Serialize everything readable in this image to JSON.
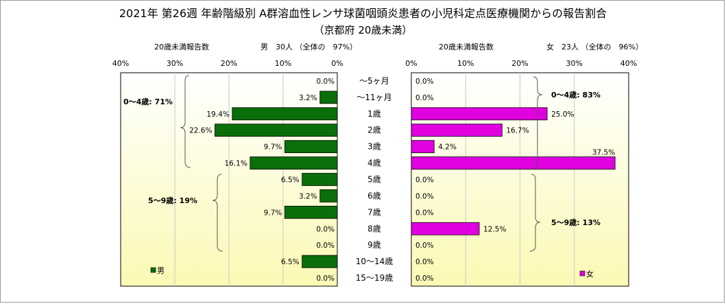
{
  "title": "2021年 第26週 年齢階級別 A群溶血性レンサ球菌咽頭炎患者の小児科定点医療機関からの報告割合",
  "subtitle": "（京都府 20歳未満）",
  "colors": {
    "male_bar": "#0a6e0a",
    "female_bar": "#e000e0",
    "plot_bg_top": "#ffffff",
    "plot_bg_bottom": "#fbf9b4",
    "gridline": "#c8c8c8"
  },
  "chart_data": [
    {
      "type": "bar",
      "orientation": "horizontal",
      "direction": "leftward",
      "header_left": "20歳未満報告数",
      "header_right": "男　30人 （全体の　97%）",
      "legend": "男",
      "xlim": [
        0,
        40
      ],
      "ticks": [
        "40%",
        "30%",
        "20%",
        "10%",
        "0%"
      ],
      "categories": [
        "～5ヶ月",
        "～11ヶ月",
        "1歳",
        "2歳",
        "3歳",
        "4歳",
        "5歳",
        "6歳",
        "7歳",
        "8歳",
        "9歳",
        "10～14歳",
        "15～19歳"
      ],
      "values": [
        0.0,
        3.2,
        19.4,
        22.6,
        9.7,
        16.1,
        6.5,
        3.2,
        9.7,
        0.0,
        0.0,
        6.5,
        0.0
      ],
      "labels": [
        "0.0%",
        "3.2%",
        "19.4%",
        "22.6%",
        "9.7%",
        "16.1%",
        "6.5%",
        "3.2%",
        "9.7%",
        "0.0%",
        "0.0%",
        "6.5%",
        "0.0%"
      ],
      "group_labels": [
        "0～4歳: 71%",
        "5～9歳: 19%"
      ]
    },
    {
      "type": "bar",
      "orientation": "horizontal",
      "direction": "rightward",
      "header_left": "20歳未満報告数",
      "header_right": "女　23人 （全体の　96%）",
      "legend": "女",
      "xlim": [
        0,
        40
      ],
      "ticks": [
        "0%",
        "10%",
        "20%",
        "30%",
        "40%"
      ],
      "categories": [
        "～5ヶ月",
        "～11ヶ月",
        "1歳",
        "2歳",
        "3歳",
        "4歳",
        "5歳",
        "6歳",
        "7歳",
        "8歳",
        "9歳",
        "10～14歳",
        "15～19歳"
      ],
      "values": [
        0.0,
        0.0,
        25.0,
        16.7,
        4.2,
        37.5,
        0.0,
        0.0,
        0.0,
        12.5,
        0.0,
        0.0,
        0.0
      ],
      "labels": [
        "0.0%",
        "0.0%",
        "25.0%",
        "16.7%",
        "4.2%",
        "37.5%",
        "0.0%",
        "0.0%",
        "0.0%",
        "12.5%",
        "0.0%",
        "0.0%",
        "0.0%"
      ],
      "group_labels": [
        "0～4歳: 83%",
        "5～9歳: 13%"
      ]
    }
  ]
}
